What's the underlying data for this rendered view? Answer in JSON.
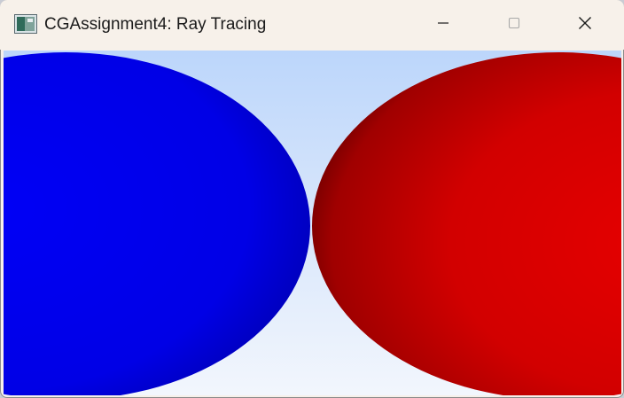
{
  "window": {
    "title": "CGAssignment4: Ray Tracing",
    "app_icon": "app-window-icon",
    "controls": {
      "minimize_icon": "minimize-icon",
      "maximize_icon": "maximize-icon",
      "close_icon": "close-icon"
    }
  },
  "scene": {
    "background_top": "#bcd6fb",
    "background_bottom": "#f2f6fd",
    "spheres": [
      {
        "name": "blue-sphere",
        "color": "#0000f2",
        "shade": "#00007a"
      },
      {
        "name": "red-sphere",
        "color": "#e20000",
        "shade": "#5a0000"
      }
    ]
  }
}
